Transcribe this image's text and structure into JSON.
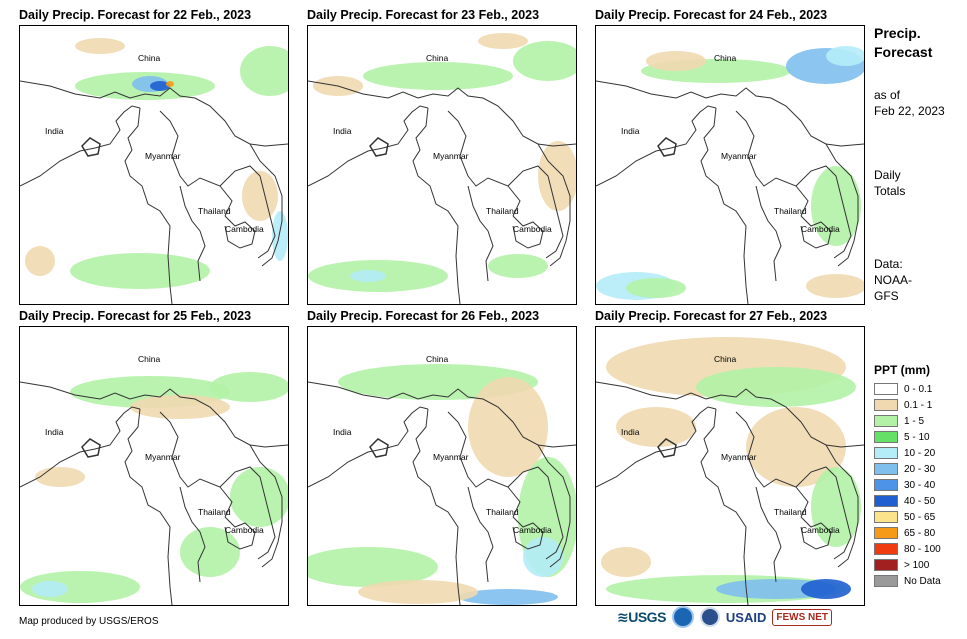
{
  "panels": [
    {
      "title": "Daily Precip. Forecast for 22 Feb., 2023",
      "labels": {
        "china": "China",
        "india": "India",
        "myanmar": "Myanmar",
        "thailand": "Thailand",
        "cambodia": "Cambodia"
      }
    },
    {
      "title": "Daily Precip. Forecast for 23 Feb., 2023",
      "labels": {
        "china": "China",
        "india": "India",
        "myanmar": "Myanmar",
        "thailand": "Thailand",
        "cambodia": "Cambodia"
      }
    },
    {
      "title": "Daily Precip. Forecast for 24 Feb., 2023",
      "labels": {
        "china": "China",
        "india": "India",
        "myanmar": "Myanmar",
        "thailand": "Thailand",
        "cambodia": "Cambodia"
      }
    },
    {
      "title": "Daily Precip. Forecast for 25 Feb., 2023",
      "labels": {
        "china": "China",
        "india": "India",
        "myanmar": "Myanmar",
        "thailand": "Thailand",
        "cambodia": "Cambodia"
      }
    },
    {
      "title": "Daily Precip. Forecast for 26 Feb., 2023",
      "labels": {
        "china": "China",
        "india": "India",
        "myanmar": "Myanmar",
        "thailand": "Thailand",
        "cambodia": "Cambodia"
      }
    },
    {
      "title": "Daily Precip. Forecast for 27 Feb., 2023",
      "labels": {
        "china": "China",
        "india": "India",
        "myanmar": "Myanmar",
        "thailand": "Thailand",
        "cambodia": "Cambodia"
      }
    }
  ],
  "side": {
    "title_line1": "Precip.",
    "title_line2": "Forecast",
    "asof_line1": "as of",
    "asof_line2": "Feb 22, 2023",
    "daily_line1": "Daily",
    "daily_line2": "Totals",
    "data_line1": "Data:",
    "data_line2": "NOAA-",
    "data_line3": "GFS"
  },
  "legend": {
    "title": "PPT (mm)",
    "items": [
      {
        "label": "0 - 0.1",
        "color": "#ffffff"
      },
      {
        "label": "0.1 - 1",
        "color": "#f0d9b0"
      },
      {
        "label": "1 - 5",
        "color": "#b3f2a6"
      },
      {
        "label": "5 - 10",
        "color": "#66e066"
      },
      {
        "label": "10 - 20",
        "color": "#b4ecf7"
      },
      {
        "label": "20 - 30",
        "color": "#7fbfee"
      },
      {
        "label": "30 - 40",
        "color": "#4d94e8"
      },
      {
        "label": "40 - 50",
        "color": "#1f5fd1"
      },
      {
        "label": "50 - 65",
        "color": "#fbe38b"
      },
      {
        "label": "65 - 80",
        "color": "#f59a18"
      },
      {
        "label": "80 - 100",
        "color": "#f03a10"
      },
      {
        "label": "> 100",
        "color": "#a32020"
      },
      {
        "label": "No Data",
        "color": "#9a9a9a"
      }
    ]
  },
  "credit": "Map produced by USGS/EROS",
  "logos": {
    "usgs": "≋USGS",
    "usaid": "USAID",
    "fews": "FEWS NET"
  }
}
